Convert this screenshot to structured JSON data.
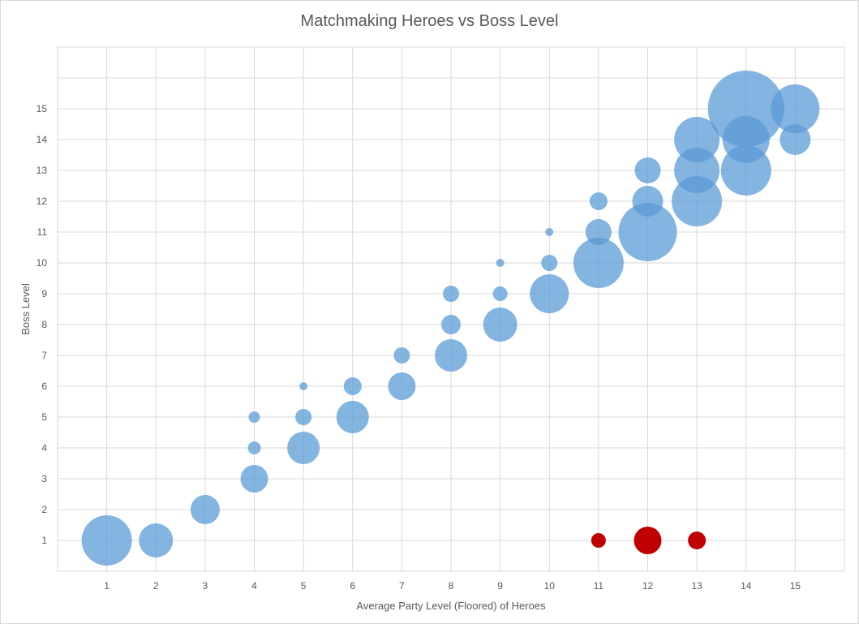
{
  "chart_data": {
    "type": "scatter",
    "subtype": "bubble",
    "title": "Matchmaking Heroes vs Boss Level",
    "xlabel": "Average Party Level (Floored) of Heroes",
    "ylabel": "Boss Level",
    "xlim": [
      0,
      16
    ],
    "ylim": [
      0,
      17
    ],
    "x_ticks": [
      1,
      2,
      3,
      4,
      5,
      6,
      7,
      8,
      9,
      10,
      11,
      12,
      13,
      14,
      15
    ],
    "y_ticks": [
      1,
      2,
      3,
      4,
      5,
      6,
      7,
      8,
      9,
      10,
      11,
      12,
      13,
      14,
      15
    ],
    "grid": true,
    "legend": "none",
    "series": [
      {
        "color": "#5b9bd5",
        "points": [
          {
            "x": 1,
            "y": 1,
            "size": 31
          },
          {
            "x": 2,
            "y": 1,
            "size": 21
          },
          {
            "x": 3,
            "y": 2,
            "size": 18
          },
          {
            "x": 4,
            "y": 3,
            "size": 17
          },
          {
            "x": 4,
            "y": 4,
            "size": 8
          },
          {
            "x": 4,
            "y": 5,
            "size": 7
          },
          {
            "x": 5,
            "y": 4,
            "size": 20
          },
          {
            "x": 5,
            "y": 5,
            "size": 10
          },
          {
            "x": 5,
            "y": 6,
            "size": 5
          },
          {
            "x": 6,
            "y": 5,
            "size": 20
          },
          {
            "x": 6,
            "y": 6,
            "size": 11
          },
          {
            "x": 7,
            "y": 6,
            "size": 17
          },
          {
            "x": 7,
            "y": 7,
            "size": 10
          },
          {
            "x": 8,
            "y": 7,
            "size": 20
          },
          {
            "x": 8,
            "y": 8,
            "size": 12
          },
          {
            "x": 8,
            "y": 9,
            "size": 10
          },
          {
            "x": 9,
            "y": 8,
            "size": 21
          },
          {
            "x": 9,
            "y": 9,
            "size": 9
          },
          {
            "x": 9,
            "y": 10,
            "size": 5
          },
          {
            "x": 10,
            "y": 9,
            "size": 24
          },
          {
            "x": 10,
            "y": 10,
            "size": 10
          },
          {
            "x": 10,
            "y": 11,
            "size": 5
          },
          {
            "x": 11,
            "y": 10,
            "size": 31
          },
          {
            "x": 11,
            "y": 11,
            "size": 16
          },
          {
            "x": 11,
            "y": 12,
            "size": 11
          },
          {
            "x": 12,
            "y": 11,
            "size": 36
          },
          {
            "x": 12,
            "y": 12,
            "size": 19
          },
          {
            "x": 12,
            "y": 13,
            "size": 16
          },
          {
            "x": 13,
            "y": 12,
            "size": 31
          },
          {
            "x": 13,
            "y": 13,
            "size": 28
          },
          {
            "x": 13,
            "y": 14,
            "size": 28
          },
          {
            "x": 14,
            "y": 13,
            "size": 31
          },
          {
            "x": 14,
            "y": 14,
            "size": 29
          },
          {
            "x": 14,
            "y": 15,
            "size": 47
          },
          {
            "x": 15,
            "y": 14,
            "size": 19
          },
          {
            "x": 15,
            "y": 15,
            "size": 30
          }
        ]
      },
      {
        "color": "#c00000",
        "points": [
          {
            "x": 11,
            "y": 1,
            "size": 9
          },
          {
            "x": 12,
            "y": 1,
            "size": 17
          },
          {
            "x": 13,
            "y": 1,
            "size": 11
          }
        ]
      }
    ]
  }
}
